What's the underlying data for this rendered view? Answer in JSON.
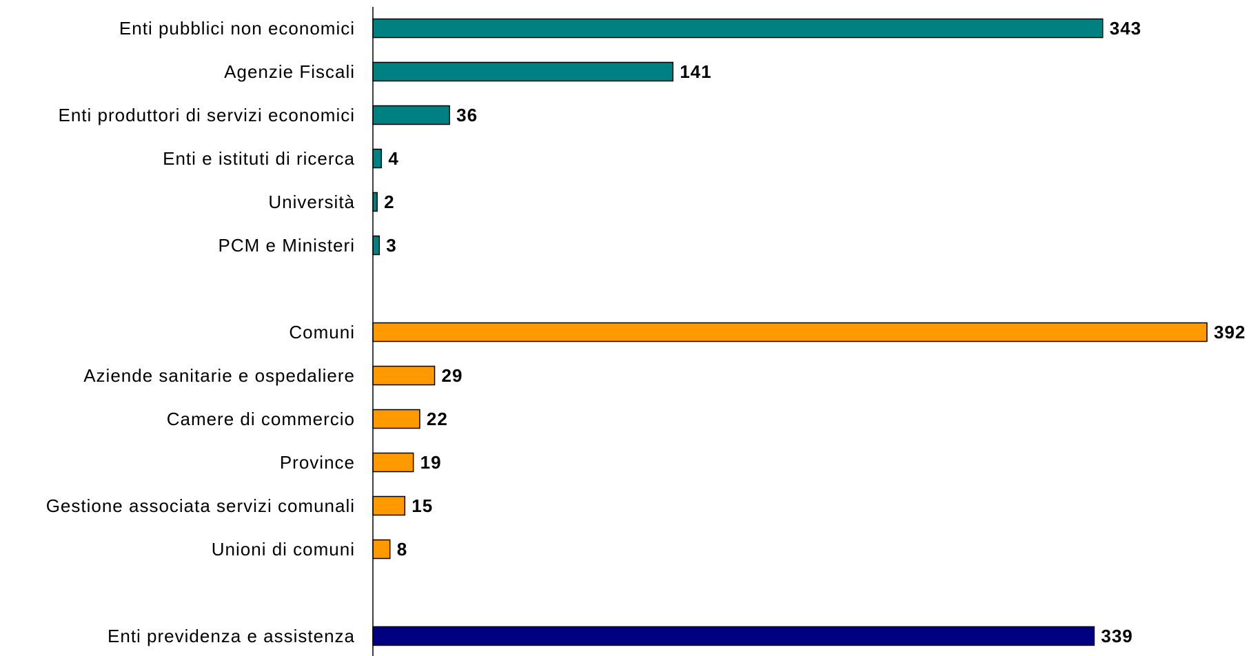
{
  "chart_data": {
    "type": "bar",
    "orientation": "horizontal",
    "grid": false,
    "title": "",
    "xlabel": "",
    "ylabel": "",
    "xlim": [
      0,
      392
    ],
    "categories": [
      "Enti pubblici non economici",
      "Agenzie Fiscali",
      "Enti produttori di servizi economici",
      "Enti e istituti di ricerca",
      "Università",
      "PCM e Ministeri",
      "Comuni",
      "Aziende sanitarie e ospedaliere",
      "Camere di commercio",
      "Province",
      "Gestione associata servizi comunali",
      "Unioni di comuni",
      "Enti previdenza e assistenza"
    ],
    "values": [
      343,
      141,
      36,
      4,
      2,
      3,
      392,
      29,
      22,
      19,
      15,
      8,
      339
    ],
    "groups": [
      {
        "color": "#008080",
        "items": [
          0,
          1,
          2,
          3,
          4,
          5
        ]
      },
      {
        "color": "#FF9900",
        "items": [
          6,
          7,
          8,
          9,
          10,
          11
        ]
      },
      {
        "color": "#000080",
        "items": [
          12
        ]
      }
    ]
  }
}
